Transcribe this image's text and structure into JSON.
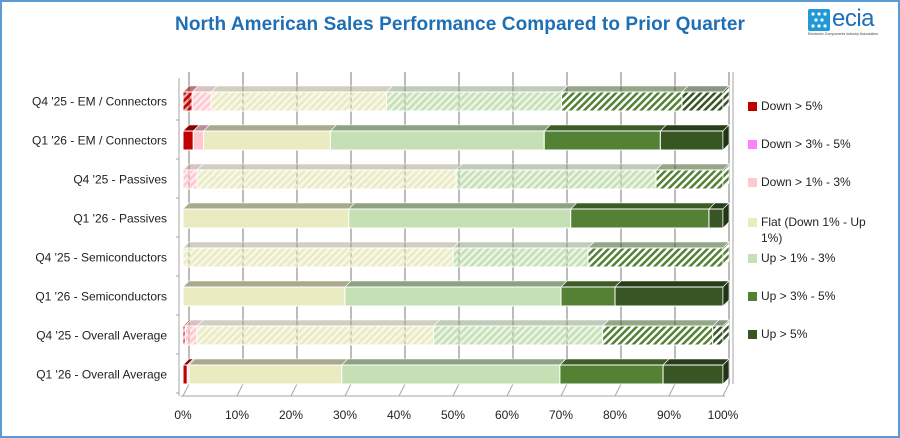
{
  "chart_data": {
    "type": "bar",
    "orientation": "horizontal-stacked-100",
    "title": "North American Sales Performance Compared to Prior Quarter",
    "xlabel": "",
    "ylabel": "",
    "xlim": [
      0,
      100
    ],
    "x_ticks": [
      "0%",
      "10%",
      "20%",
      "30%",
      "40%",
      "50%",
      "60%",
      "70%",
      "80%",
      "90%",
      "100%"
    ],
    "grid": true,
    "legend_position": "right",
    "categories": [
      "Q4 '25 - EM / Connectors",
      "Q1 '26 - EM / Connectors",
      "Q4 '25 - Passives",
      "Q1 '26 - Passives",
      "Q4 '25 - Semiconductors",
      "Q1 '26 - Semiconductors",
      "Q4 '25 - Overall Average",
      "Q1 '26 - Overall Average"
    ],
    "hatched_categories": [
      true,
      false,
      true,
      false,
      true,
      false,
      true,
      false
    ],
    "series": [
      {
        "name": "Down > 5%",
        "color": "#c00000",
        "values": [
          1.7,
          1.9,
          0,
          0,
          0,
          0,
          0.4,
          0.8
        ]
      },
      {
        "name": "Down > 3% - 5%",
        "color": "#ff80ff",
        "values": [
          0,
          0,
          0,
          0,
          0,
          0,
          0,
          0
        ]
      },
      {
        "name": "Down > 1% - 3%",
        "color": "#ffc7ce",
        "values": [
          3.5,
          1.9,
          2.6,
          0,
          0,
          0,
          2.2,
          0.3
        ]
      },
      {
        "name": "Flat (Down 1% - Up 1%)",
        "color": "#ebebc2",
        "values": [
          32.5,
          23.5,
          48.0,
          30.7,
          50.0,
          30.0,
          43.8,
          28.3
        ]
      },
      {
        "name": "Up > 1% - 3%",
        "color": "#c5e0b4",
        "values": [
          32.4,
          39.6,
          37.0,
          41.1,
          25.0,
          40.0,
          31.3,
          40.4
        ]
      },
      {
        "name": "Up > 3% - 5%",
        "color": "#548235",
        "values": [
          22.3,
          21.5,
          12.4,
          25.6,
          25.0,
          10.0,
          20.4,
          19.1
        ]
      },
      {
        "name": "Up > 5%",
        "color": "#375623",
        "values": [
          7.6,
          11.6,
          0,
          2.6,
          0,
          20.0,
          1.9,
          11.1
        ]
      }
    ]
  },
  "logo": {
    "word": "ecia",
    "subtitle": "Electronic Components Industry Association"
  }
}
